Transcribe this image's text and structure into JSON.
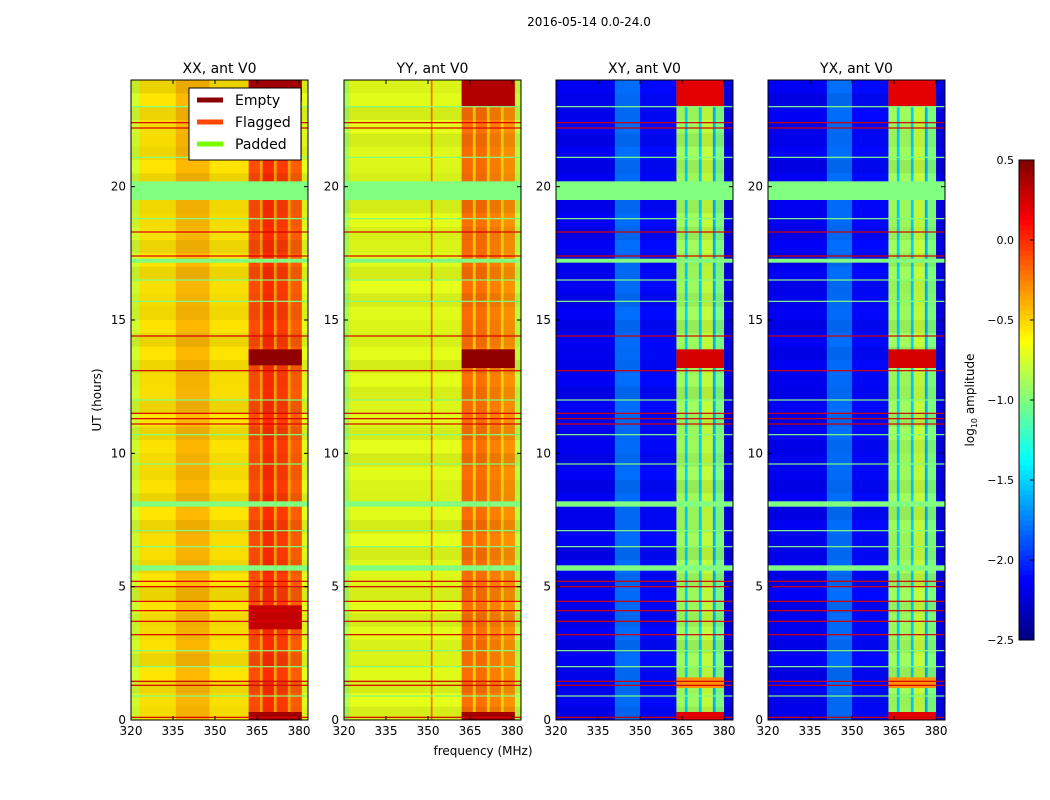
{
  "figure_title": "2016-05-14 0.0-24.0",
  "chart_data": {
    "type": "heatmap",
    "title": "2016-05-14 0.0-24.0",
    "xlabel": "frequency (MHz)",
    "ylabel": "UT (hours)",
    "xlim": [
      320,
      383.2
    ],
    "ylim": [
      0,
      24
    ],
    "xticks": [
      320,
      335,
      350,
      365,
      380
    ],
    "yticks": [
      0,
      5,
      10,
      15,
      20
    ],
    "colormap": "jet",
    "colorbar": {
      "label": "log10 amplitude",
      "label_main": "log",
      "label_sub": "10",
      "label_rest": " amplitude",
      "range": [
        -2.5,
        0.5
      ],
      "ticks": [
        "0.5",
        "0.0",
        "−0.5",
        "−1.0",
        "−1.5",
        "−2.0",
        "−2.5"
      ],
      "tick_values": [
        0.5,
        0.0,
        -0.5,
        -1.0,
        -1.5,
        -2.0,
        -2.5
      ]
    },
    "legend": {
      "placement": "top-right of first panel",
      "entries": [
        {
          "label": "Empty",
          "color": "#8b0000"
        },
        {
          "label": "Flagged",
          "color": "#ff4500"
        },
        {
          "label": "Padded",
          "color": "#7cfc00"
        }
      ]
    },
    "flagged_rows_ut": [
      0.1,
      1.3,
      1.45,
      3.2,
      3.7,
      4.1,
      4.45,
      5.0,
      5.2,
      11.1,
      11.3,
      11.5,
      13.1,
      14.4,
      17.4,
      18.3,
      22.2,
      22.4
    ],
    "padded_rows_ut": [
      [
        19.5,
        20.2
      ],
      [
        17.15,
        17.3
      ],
      [
        8.0,
        8.2
      ],
      [
        5.6,
        5.8
      ]
    ],
    "padded_lines_ut": [
      0.9,
      2.0,
      6.5,
      9.6,
      12.0,
      15.7,
      21.1,
      23.0,
      2.6,
      7.1,
      10.7,
      16.5,
      18.8
    ],
    "padded_value": -1.0,
    "flagged_value": 0.25,
    "panels": [
      {
        "title": "XX, ant V0",
        "profile": [
          [
            320,
            323,
            -0.75
          ],
          [
            323,
            336,
            -0.55
          ],
          [
            336,
            348,
            -0.42
          ],
          [
            348,
            362,
            -0.55
          ],
          [
            362,
            366,
            -0.1
          ],
          [
            366,
            367,
            -0.35
          ],
          [
            367,
            371,
            0.0
          ],
          [
            371,
            372,
            -0.35
          ],
          [
            372,
            376,
            -0.05
          ],
          [
            376,
            377,
            -0.35
          ],
          [
            377,
            381,
            -0.15
          ],
          [
            381,
            383.2,
            -0.7
          ]
        ],
        "events": [
          [
            13.3,
            13.9,
            362,
            381,
            0.45
          ],
          [
            3.4,
            4.3,
            362,
            381,
            0.3
          ],
          [
            23.2,
            24,
            362,
            381,
            0.4
          ],
          [
            0,
            0.3,
            362,
            381,
            0.4
          ]
        ]
      },
      {
        "title": "YY, ant V0",
        "profile": [
          [
            320,
            322,
            -0.85
          ],
          [
            322,
            351,
            -0.7
          ],
          [
            351,
            351.6,
            -0.2
          ],
          [
            351.6,
            362,
            -0.7
          ],
          [
            362,
            366,
            -0.2
          ],
          [
            366,
            367,
            -0.5
          ],
          [
            367,
            371,
            -0.2
          ],
          [
            371,
            372,
            -0.5
          ],
          [
            372,
            376,
            -0.25
          ],
          [
            376,
            377,
            -0.5
          ],
          [
            377,
            381,
            -0.3
          ],
          [
            381,
            383.2,
            -0.8
          ]
        ],
        "events": [
          [
            13.2,
            13.9,
            362,
            381,
            0.45
          ],
          [
            23.0,
            24,
            362,
            381,
            0.35
          ],
          [
            0,
            0.3,
            362,
            381,
            0.4
          ]
        ]
      },
      {
        "title": "XY, ant V0",
        "profile": [
          [
            320,
            341,
            -2.15
          ],
          [
            341,
            350,
            -1.8
          ],
          [
            350,
            363,
            -2.1
          ],
          [
            363,
            366,
            -0.9
          ],
          [
            366,
            367,
            -1.5
          ],
          [
            367,
            371,
            -0.9
          ],
          [
            371,
            372,
            -1.5
          ],
          [
            372,
            376,
            -0.8
          ],
          [
            376,
            377,
            -1.6
          ],
          [
            377,
            380,
            -1.0
          ],
          [
            380,
            383.2,
            -2.2
          ]
        ],
        "events": [
          [
            13.2,
            13.9,
            363,
            380,
            0.25
          ],
          [
            23.0,
            24,
            363,
            380,
            0.2
          ],
          [
            0,
            0.3,
            363,
            380,
            0.2
          ],
          [
            1.2,
            1.6,
            363,
            380,
            -0.3
          ]
        ]
      },
      {
        "title": "YX, ant V0",
        "profile": [
          [
            320,
            341,
            -2.15
          ],
          [
            341,
            350,
            -1.8
          ],
          [
            350,
            363,
            -2.1
          ],
          [
            363,
            366,
            -0.9
          ],
          [
            366,
            367,
            -1.5
          ],
          [
            367,
            371,
            -0.9
          ],
          [
            371,
            372,
            -1.5
          ],
          [
            372,
            376,
            -0.8
          ],
          [
            376,
            377,
            -1.6
          ],
          [
            377,
            380,
            -1.0
          ],
          [
            380,
            383.2,
            -2.2
          ]
        ],
        "events": [
          [
            13.2,
            13.9,
            363,
            380,
            0.25
          ],
          [
            23.0,
            24,
            363,
            380,
            0.2
          ],
          [
            0,
            0.3,
            363,
            380,
            0.2
          ],
          [
            1.2,
            1.6,
            363,
            380,
            -0.3
          ]
        ]
      }
    ]
  }
}
